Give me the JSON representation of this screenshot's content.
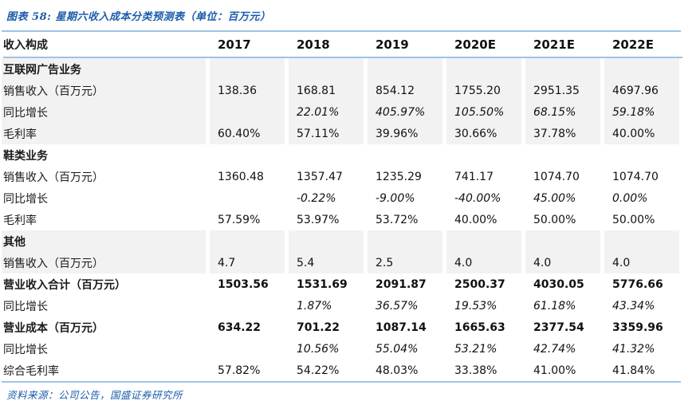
{
  "title": "图表 58: 星期六收入成本分类预测表（单位：百万元）",
  "source": "资料来源：公司公告，国盛证券研究所",
  "colors": {
    "accent_blue": "#1c5cab",
    "rule_blue": "#9DC3E6",
    "row_shade": "#F2F2F2"
  },
  "chart_data": {
    "type": "table",
    "title": "星期六收入成本分类预测表（单位：百万元）",
    "header": [
      "收入构成",
      "2017",
      "2018",
      "2019",
      "2020E",
      "2021E",
      "2022E"
    ],
    "rows": [
      {
        "label": "互联网广告业务",
        "type": "section",
        "shade": true,
        "values": [
          "",
          "",
          "",
          "",
          "",
          ""
        ]
      },
      {
        "label": "销售收入（百万元）",
        "type": "data",
        "shade": true,
        "values": [
          "138.36",
          "168.81",
          "854.12",
          "1755.20",
          "2951.35",
          "4697.96"
        ]
      },
      {
        "label": "同比增长",
        "type": "growth",
        "shade": true,
        "values": [
          "",
          "22.01%",
          "405.97%",
          "105.50%",
          "68.15%",
          "59.18%"
        ]
      },
      {
        "label": "毛利率",
        "type": "data",
        "shade": true,
        "values": [
          "60.40%",
          "57.11%",
          "39.96%",
          "30.66%",
          "37.78%",
          "40.00%"
        ]
      },
      {
        "label": "鞋类业务",
        "type": "section",
        "shade": false,
        "values": [
          "",
          "",
          "",
          "",
          "",
          ""
        ]
      },
      {
        "label": "销售收入（百万元）",
        "type": "data",
        "shade": false,
        "values": [
          "1360.48",
          "1357.47",
          "1235.29",
          "741.17",
          "1074.70",
          "1074.70"
        ]
      },
      {
        "label": "同比增长",
        "type": "growth",
        "shade": false,
        "values": [
          "",
          "-0.22%",
          "-9.00%",
          "-40.00%",
          "45.00%",
          "0.00%"
        ]
      },
      {
        "label": "毛利率",
        "type": "data",
        "shade": false,
        "values": [
          "57.59%",
          "53.97%",
          "53.72%",
          "40.00%",
          "50.00%",
          "50.00%"
        ]
      },
      {
        "label": "其他",
        "type": "section",
        "shade": true,
        "values": [
          "",
          "",
          "",
          "",
          "",
          ""
        ]
      },
      {
        "label": "销售收入（百万元）",
        "type": "data",
        "shade": true,
        "values": [
          "4.7",
          "5.4",
          "2.5",
          "4.0",
          "4.0",
          "4.0"
        ]
      },
      {
        "label": "营业收入合计（百万元）",
        "type": "total",
        "shade": false,
        "values": [
          "1503.56",
          "1531.69",
          "2091.87",
          "2500.37",
          "4030.05",
          "5776.66"
        ]
      },
      {
        "label": "同比增长",
        "type": "growth",
        "shade": false,
        "values": [
          "",
          "1.87%",
          "36.57%",
          "19.53%",
          "61.18%",
          "43.34%"
        ]
      },
      {
        "label": "营业成本（百万元）",
        "type": "total",
        "shade": false,
        "values": [
          "634.22",
          "701.22",
          "1087.14",
          "1665.63",
          "2377.54",
          "3359.96"
        ]
      },
      {
        "label": "同比增长",
        "type": "growth",
        "shade": false,
        "values": [
          "",
          "10.56%",
          "55.04%",
          "53.21%",
          "42.74%",
          "41.32%"
        ]
      },
      {
        "label": "综合毛利率",
        "type": "data",
        "shade": false,
        "values": [
          "57.82%",
          "54.22%",
          "48.03%",
          "33.38%",
          "41.00%",
          "41.84%"
        ]
      }
    ]
  }
}
